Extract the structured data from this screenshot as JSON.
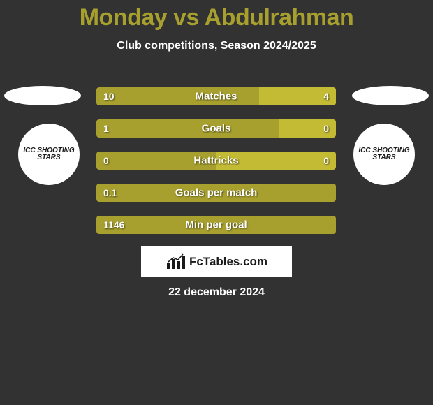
{
  "header": {
    "title": "Monday vs Abdulrahman",
    "subtitle": "Club competitions, Season 2024/2025"
  },
  "players": {
    "left_club_label": "ICC SHOOTING STARS",
    "right_club_label": "ICC SHOOTING STARS"
  },
  "comparison": {
    "bars": [
      {
        "label": "Matches",
        "left": "10",
        "right": "4",
        "left_pct": 68,
        "right_pct": 32
      },
      {
        "label": "Goals",
        "left": "1",
        "right": "0",
        "left_pct": 76,
        "right_pct": 24
      },
      {
        "label": "Hattricks",
        "left": "0",
        "right": "0",
        "left_pct": 50,
        "right_pct": 50
      },
      {
        "label": "Goals per match",
        "left": "0.1",
        "right": "",
        "left_pct": 100,
        "right_pct": 0
      },
      {
        "label": "Min per goal",
        "left": "1146",
        "right": "",
        "left_pct": 100,
        "right_pct": 0
      }
    ],
    "left_color": "#a8a02e",
    "right_color": "#c4bb35"
  },
  "branding": {
    "text": "FcTables.com"
  },
  "date": "22 december 2024",
  "colors": {
    "background": "#323232",
    "title": "#a8a02e",
    "text": "#ffffff"
  }
}
